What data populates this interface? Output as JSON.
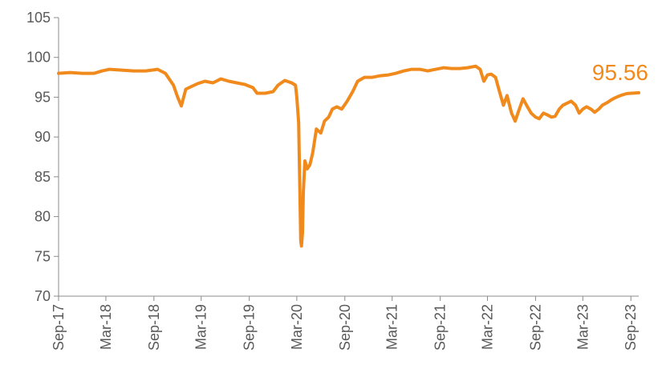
{
  "chart_data": {
    "type": "line",
    "title": "",
    "xlabel": "",
    "ylabel": "",
    "ylim": [
      70,
      105
    ],
    "y_ticks": [
      70,
      75,
      80,
      85,
      90,
      95,
      100,
      105
    ],
    "x_ticks": [
      "Sep-17",
      "Mar-18",
      "Sep-18",
      "Mar-19",
      "Sep-19",
      "Mar-20",
      "Sep-20",
      "Mar-21",
      "Sep-21",
      "Mar-22",
      "Sep-22",
      "Mar-23",
      "Sep-23"
    ],
    "grid": false,
    "legend": "none",
    "series": [
      {
        "color": "#F08A1C",
        "end_label": "95.56",
        "x": [
          "2017-09-01",
          "2017-10-15",
          "2017-12-01",
          "2018-01-15",
          "2018-02-15",
          "2018-03-15",
          "2018-05-01",
          "2018-06-15",
          "2018-08-01",
          "2018-09-15",
          "2018-10-15",
          "2018-11-15",
          "2018-12-01",
          "2018-12-15",
          "2019-01-01",
          "2019-01-20",
          "2019-02-15",
          "2019-03-15",
          "2019-04-15",
          "2019-05-15",
          "2019-06-15",
          "2019-07-15",
          "2019-08-15",
          "2019-09-15",
          "2019-10-01",
          "2019-11-01",
          "2019-12-01",
          "2019-12-20",
          "2020-01-15",
          "2020-02-10",
          "2020-02-25",
          "2020-03-01",
          "2020-03-08",
          "2020-03-12",
          "2020-03-16",
          "2020-03-19",
          "2020-03-23",
          "2020-03-26",
          "2020-04-01",
          "2020-04-10",
          "2020-04-20",
          "2020-05-01",
          "2020-05-15",
          "2020-06-01",
          "2020-06-15",
          "2020-07-01",
          "2020-07-15",
          "2020-08-01",
          "2020-08-20",
          "2020-09-10",
          "2020-10-01",
          "2020-10-20",
          "2020-11-15",
          "2020-12-15",
          "2021-01-15",
          "2021-02-15",
          "2021-03-15",
          "2021-04-15",
          "2021-05-15",
          "2021-06-15",
          "2021-07-15",
          "2021-08-15",
          "2021-09-15",
          "2021-10-15",
          "2021-11-15",
          "2021-12-15",
          "2022-01-15",
          "2022-02-01",
          "2022-02-15",
          "2022-03-01",
          "2022-03-15",
          "2022-04-01",
          "2022-04-15",
          "2022-05-01",
          "2022-05-15",
          "2022-06-01",
          "2022-06-15",
          "2022-07-01",
          "2022-07-15",
          "2022-08-01",
          "2022-08-15",
          "2022-09-01",
          "2022-09-15",
          "2022-10-01",
          "2022-10-15",
          "2022-11-01",
          "2022-11-15",
          "2022-12-01",
          "2022-12-15",
          "2023-01-15",
          "2023-02-01",
          "2023-02-15",
          "2023-03-01",
          "2023-03-15",
          "2023-04-01",
          "2023-04-15",
          "2023-05-01",
          "2023-05-15",
          "2023-06-01",
          "2023-06-15",
          "2023-07-01",
          "2023-07-15",
          "2023-08-01",
          "2023-08-15",
          "2023-09-01",
          "2023-09-15",
          "2023-10-01"
        ],
        "y": [
          98.0,
          98.1,
          98.0,
          98.0,
          98.3,
          98.5,
          98.4,
          98.3,
          98.3,
          98.5,
          98.0,
          96.5,
          95.0,
          93.9,
          96.0,
          96.3,
          96.7,
          97.0,
          96.8,
          97.3,
          97.0,
          96.8,
          96.6,
          96.2,
          95.5,
          95.5,
          95.7,
          96.5,
          97.1,
          96.8,
          96.5,
          95.0,
          91.8,
          84.5,
          77.0,
          76.3,
          78.0,
          83.0,
          87.0,
          86.0,
          86.5,
          88.0,
          91.0,
          90.5,
          92.0,
          92.5,
          93.5,
          93.8,
          93.5,
          94.5,
          95.7,
          97.0,
          97.5,
          97.5,
          97.7,
          97.8,
          98.0,
          98.3,
          98.5,
          98.5,
          98.3,
          98.5,
          98.7,
          98.6,
          98.6,
          98.7,
          98.9,
          98.5,
          97.0,
          97.8,
          97.9,
          97.5,
          95.8,
          94.0,
          95.2,
          93.0,
          92.0,
          93.5,
          94.8,
          93.8,
          93.0,
          92.5,
          92.3,
          93.0,
          92.8,
          92.5,
          92.6,
          93.5,
          94.0,
          94.5,
          94.0,
          93.0,
          93.5,
          93.8,
          93.5,
          93.1,
          93.5,
          94.0,
          94.3,
          94.6,
          94.9,
          95.1,
          95.3,
          95.45,
          95.5,
          95.52,
          95.56
        ]
      }
    ]
  }
}
